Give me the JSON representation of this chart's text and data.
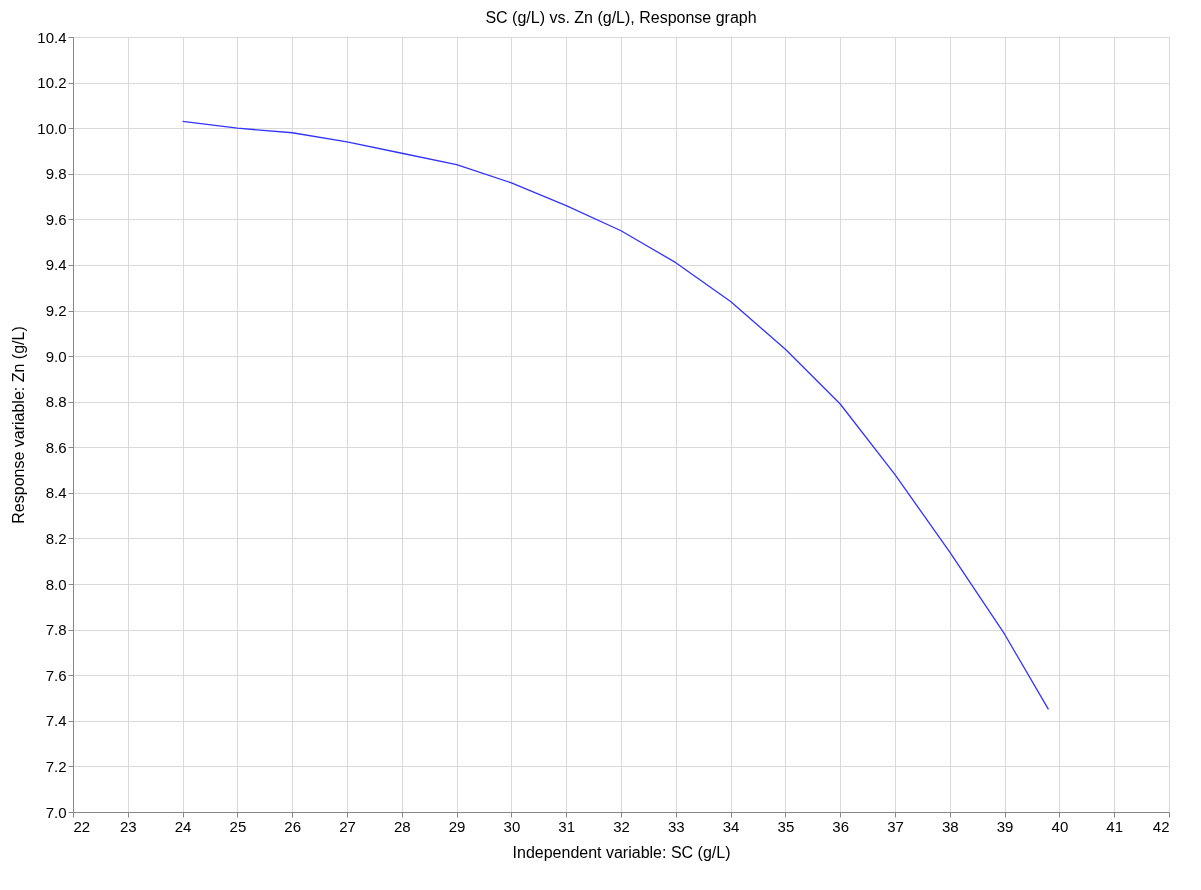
{
  "chart_data": {
    "type": "line",
    "title": "SC (g/L) vs. Zn (g/L), Response graph",
    "xlabel": "Independent variable: SC (g/L)",
    "ylabel": "Response variable: Zn (g/L)",
    "x": [
      24,
      25,
      26,
      27,
      28,
      29,
      30,
      31,
      32,
      33,
      34,
      35,
      36,
      37,
      38,
      39,
      39.8
    ],
    "series": [
      {
        "color": "#3333ff",
        "values": [
          10.03,
          10.0,
          9.98,
          9.94,
          9.89,
          9.84,
          9.76,
          9.66,
          9.55,
          9.41,
          9.24,
          9.03,
          8.79,
          8.48,
          8.14,
          7.78,
          7.45
        ]
      }
    ],
    "xlim": [
      22,
      42
    ],
    "xticks": [
      22,
      23,
      24,
      25,
      26,
      27,
      28,
      29,
      30,
      31,
      32,
      33,
      34,
      35,
      36,
      37,
      38,
      39,
      40,
      41,
      42
    ],
    "ylim": [
      7.0,
      10.4
    ],
    "yticks": [
      {
        "value": 7,
        "label": "7.0"
      },
      7.2,
      7.4,
      7.6,
      7.8,
      {
        "value": 8,
        "label": "8.0"
      },
      8.2,
      8.4,
      8.6,
      8.8,
      {
        "value": 9,
        "label": "9.0"
      },
      9.2,
      9.4,
      9.6,
      9.8,
      {
        "value": 10,
        "label": "10.0"
      },
      10.2,
      10.4
    ],
    "grid": true,
    "marker": "none",
    "line_style": "solid"
  }
}
